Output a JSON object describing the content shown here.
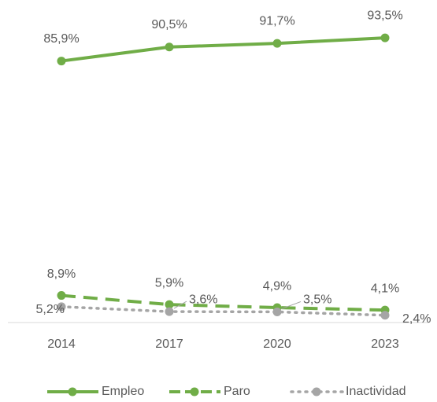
{
  "chart_data": {
    "type": "line",
    "categories": [
      "2014",
      "2017",
      "2020",
      "2023"
    ],
    "ylim": [
      0,
      100
    ],
    "legend": "bottom",
    "series": [
      {
        "name": "Empleo",
        "color": "#70ad47",
        "style": "solid",
        "values": [
          85.9,
          90.5,
          91.7,
          93.5
        ],
        "value_labels": [
          "85,9%",
          "90,5%",
          "91,7%",
          "93,5%"
        ]
      },
      {
        "name": "Paro",
        "color": "#70ad47",
        "style": "dashed",
        "values": [
          8.9,
          5.9,
          4.9,
          4.1
        ],
        "value_labels": [
          "8,9%",
          "5,9%",
          "4,9%",
          "4,1%"
        ]
      },
      {
        "name": "Inactividad",
        "color": "#a5a5a5",
        "style": "dotted",
        "values": [
          5.2,
          3.6,
          3.5,
          2.4
        ],
        "value_labels": [
          "5,2%",
          "3,6%",
          "3,5%",
          "2,4%"
        ]
      }
    ]
  }
}
